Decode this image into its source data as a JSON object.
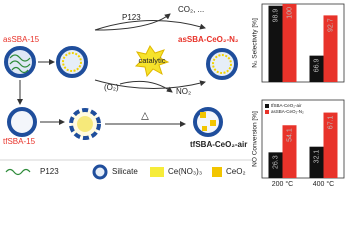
{
  "scheme": {
    "as_sba15": "asSBA-15",
    "p123": "P123",
    "products": "CO₂, ...",
    "as_product": "asSBA-CeO₂-N₂",
    "catalytic": "catalytic",
    "o2": "(O₂)",
    "no2": "NO₂",
    "tf_sba15": "tfSBA-15",
    "heat": "△",
    "tf_product": "tfSBA-CeO₂-air"
  },
  "legend": [
    {
      "label": "P123"
    },
    {
      "label": "Silicate"
    },
    {
      "label": "Ce(NO₃)₃"
    },
    {
      "label": "CeO₂"
    }
  ],
  "chart_data": [
    {
      "type": "bar",
      "ylabel": "N₂ Selectivity [%]",
      "categories": [
        null,
        null
      ],
      "series": [
        {
          "color": "#111111",
          "values": [
            98.9,
            66.9
          ]
        },
        {
          "color": "#e8332a",
          "values": [
            100,
            92.7
          ]
        }
      ],
      "ylim": [
        50,
        100
      ]
    },
    {
      "type": "bar",
      "ylabel": "NO Conversion [%]",
      "categories": [
        "200 °C",
        "400 °C"
      ],
      "series": [
        {
          "name": "tfSBA-CeO₂-air",
          "color": "#111111",
          "values": [
            26.3,
            32.1
          ]
        },
        {
          "name": "asSBA-CeO₂-N₂",
          "color": "#e8332a",
          "values": [
            54.1,
            67.1
          ]
        }
      ],
      "ylim": [
        0,
        80
      ],
      "legend": "upper left"
    }
  ]
}
